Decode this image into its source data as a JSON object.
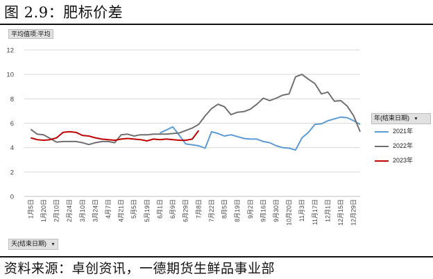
{
  "page": {
    "title": "图 2.9：肥标价差",
    "source": "资料来源：卓创资讯，一德期货生鲜品事业部"
  },
  "pivot": {
    "value_field": "平均值项:平均",
    "axis_field": "天(结束日期)",
    "legend_field": "年(结束日期)",
    "dropdown_icon": "triangle-down-icon"
  },
  "chart_data": {
    "type": "line",
    "ylim": [
      0,
      12
    ],
    "yticks": [
      0,
      2,
      4,
      6,
      8,
      10,
      12
    ],
    "grid": true,
    "legend_position": "right",
    "categories": [
      "1月5日",
      "1月20日",
      "2月10日",
      "2月24日",
      "3月10日",
      "3月24日",
      "4月7日",
      "4月21日",
      "5月5日",
      "5月19日",
      "6月1日",
      "6月9日",
      "6月29日",
      "7月8日",
      "7月22日",
      "8月5日",
      "8月19日",
      "9月2日",
      "9月16日",
      "9月30日",
      "10月20日",
      "11月3日",
      "11月17日",
      "12月1日",
      "12月15日",
      "12月29日"
    ],
    "series": [
      {
        "name": "2021年",
        "color": "#5b9bd5",
        "x": [
          10,
          11,
          12,
          13,
          13.5,
          14,
          14.5,
          15,
          15.5,
          16,
          16.5,
          17,
          17.5,
          18,
          18.5,
          19,
          19.5,
          20,
          20.5,
          21,
          21.5,
          22,
          22.5,
          23,
          23.5,
          24,
          24.5,
          25,
          25.5
        ],
        "values": [
          5.2,
          5.7,
          4.3,
          4.15,
          3.95,
          5.3,
          5.15,
          4.95,
          5.05,
          4.9,
          4.75,
          4.7,
          4.7,
          4.5,
          4.4,
          4.15,
          4.0,
          3.95,
          3.8,
          4.8,
          5.25,
          5.9,
          5.95,
          6.2,
          6.35,
          6.5,
          6.45,
          6.2,
          5.9
        ]
      },
      {
        "name": "2022年",
        "color": "#6f6f6f",
        "x": [
          0,
          0.5,
          1,
          1.5,
          2,
          2.5,
          3,
          3.5,
          4,
          4.5,
          5,
          5.5,
          6,
          6.5,
          7,
          7.5,
          8,
          8.5,
          9,
          9.5,
          10,
          10.5,
          11,
          11.5,
          12,
          12.5,
          13,
          13.5,
          14,
          14.5,
          15,
          15.5,
          16,
          16.5,
          17,
          17.5,
          18,
          18.5,
          19,
          19.5,
          20,
          20.5,
          21,
          21.5,
          22,
          22.5,
          23,
          23.5,
          24,
          24.5,
          25,
          25.5
        ],
        "values": [
          5.5,
          5.1,
          5.05,
          4.75,
          4.45,
          4.5,
          4.5,
          4.5,
          4.4,
          4.25,
          4.4,
          4.5,
          4.5,
          4.4,
          5.05,
          5.1,
          4.95,
          5.05,
          5.05,
          5.1,
          5.1,
          5.1,
          5.15,
          5.2,
          5.4,
          5.6,
          5.9,
          6.6,
          7.2,
          7.55,
          7.35,
          6.7,
          6.9,
          6.95,
          7.15,
          7.55,
          8.05,
          7.85,
          8.05,
          8.3,
          8.4,
          9.8,
          10.0,
          9.6,
          9.25,
          8.4,
          8.55,
          7.8,
          7.85,
          7.4,
          6.6,
          5.3
        ]
      },
      {
        "name": "2023年",
        "color": "#c00000",
        "x": [
          0,
          0.5,
          1,
          1.5,
          2,
          2.5,
          3,
          3.5,
          4,
          4.5,
          5,
          5.5,
          6,
          6.5,
          7,
          7.5,
          8,
          8.5,
          9,
          9.5,
          10,
          10.5,
          11,
          11.5,
          12,
          12.5,
          13
        ],
        "values": [
          4.8,
          4.65,
          4.6,
          4.65,
          4.8,
          5.25,
          5.3,
          5.25,
          5.0,
          4.95,
          4.8,
          4.7,
          4.65,
          4.6,
          4.7,
          4.75,
          4.7,
          4.65,
          4.55,
          4.7,
          4.65,
          4.7,
          4.65,
          4.6,
          4.6,
          4.7,
          5.4
        ]
      }
    ]
  }
}
